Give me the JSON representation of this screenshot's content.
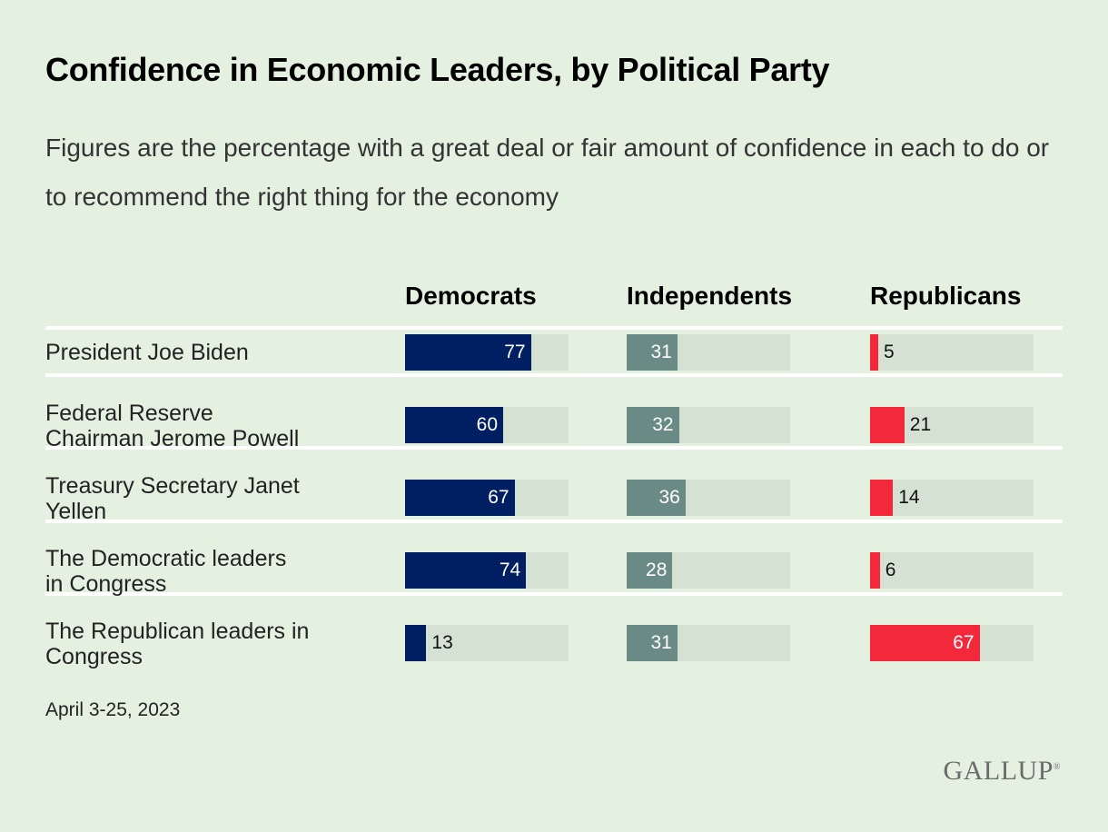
{
  "chart_data": {
    "type": "bar",
    "title": "Confidence in Economic Leaders, by Political Party",
    "subtitle": "Figures are the percentage with a great deal or fair amount of confidence in each to do or to recommend the right thing for the economy",
    "categories": [
      "President Joe Biden",
      "Federal Reserve Chairman Jerome Powell",
      "Treasury Secretary Janet Yellen",
      "The Democratic leaders in Congress",
      "The Republican leaders in Congress"
    ],
    "category_lines": [
      [
        "President Joe Biden"
      ],
      [
        "Federal Reserve",
        "Chairman Jerome Powell"
      ],
      [
        "Treasury Secretary Janet",
        "Yellen"
      ],
      [
        "The Democratic leaders",
        "in Congress"
      ],
      [
        "The Republican leaders in",
        "Congress"
      ]
    ],
    "series": [
      {
        "name": "Democrats",
        "values": [
          77,
          60,
          67,
          74,
          13
        ],
        "color": "#001f63"
      },
      {
        "name": "Independents",
        "values": [
          31,
          32,
          36,
          28,
          31
        ],
        "color": "#6a8a86"
      },
      {
        "name": "Republicans",
        "values": [
          5,
          21,
          14,
          6,
          67
        ],
        "color": "#f4283b"
      }
    ],
    "xlim": [
      0,
      100
    ],
    "track_color": "#d5e1d2"
  },
  "footnote": "April 3-25, 2023",
  "logo": {
    "text": "GALLUP",
    "mark": "®"
  }
}
